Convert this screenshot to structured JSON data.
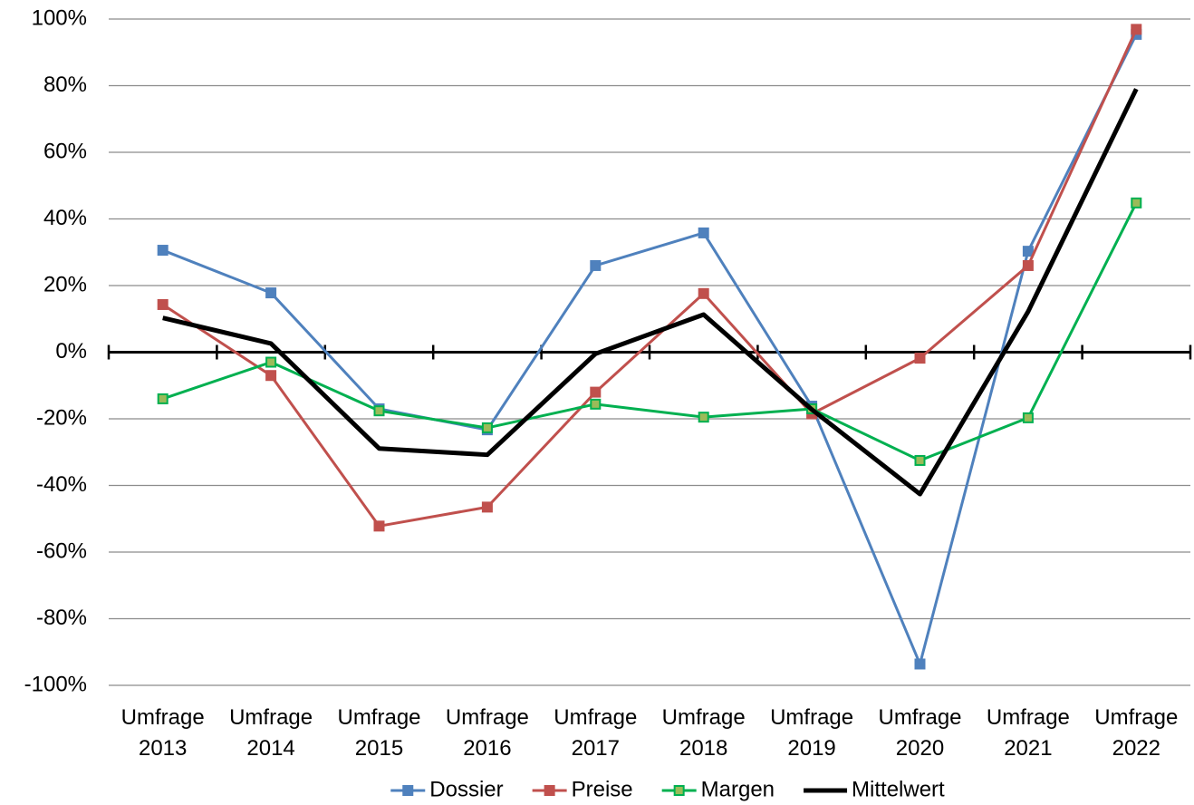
{
  "chart_data": {
    "type": "line",
    "categories": [
      "Umfrage 2013",
      "Umfrage 2014",
      "Umfrage 2015",
      "Umfrage 2016",
      "Umfrage 2017",
      "Umfrage 2018",
      "Umfrage 2019",
      "Umfrage 2020",
      "Umfrage 2021",
      "Umfrage 2022"
    ],
    "series": [
      {
        "name": "Dossier",
        "color": "#4f81bd",
        "marker": true,
        "values": [
          30.6,
          17.8,
          -17,
          -23.3,
          26,
          35.8,
          -16.2,
          -93.6,
          30.3,
          95.4
        ]
      },
      {
        "name": "Preise",
        "color": "#c0504d",
        "marker": true,
        "values": [
          14.3,
          -7,
          -52.2,
          -46.5,
          -12,
          17.6,
          -18.5,
          -1.8,
          26,
          96.9
        ]
      },
      {
        "name": "Margen",
        "color": "#00b050",
        "marker": true,
        "values": [
          -14,
          -3,
          -17.6,
          -22.7,
          -15.6,
          -19.5,
          -17,
          -32.5,
          -19.7,
          44.8
        ]
      },
      {
        "name": "Mittelwert",
        "color": "#000000",
        "marker": false,
        "values": [
          10.3,
          2.6,
          -28.9,
          -30.8,
          -0.5,
          11.3,
          -17.2,
          -42.6,
          12.2,
          79
        ]
      }
    ],
    "ylim": [
      -100,
      100
    ],
    "yticks": [
      {
        "value": -100,
        "label": "-100%"
      },
      {
        "value": -80,
        "label": "-80%"
      },
      {
        "value": -60,
        "label": "-60%"
      },
      {
        "value": -40,
        "label": "-40%"
      },
      {
        "value": -20,
        "label": "-20%"
      },
      {
        "value": 0,
        "label": "0%"
      },
      {
        "value": 20,
        "label": "20%"
      },
      {
        "value": 40,
        "label": "40%"
      },
      {
        "value": 60,
        "label": "60%"
      },
      {
        "value": 80,
        "label": "80%"
      },
      {
        "value": 100,
        "label": "100%"
      }
    ],
    "grid": true,
    "legend": "bottom"
  }
}
